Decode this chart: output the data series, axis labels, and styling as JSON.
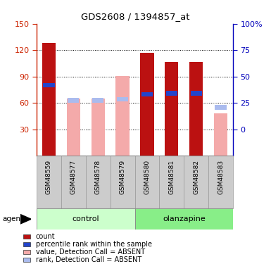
{
  "title": "GDS2608 / 1394857_at",
  "samples": [
    "GSM48559",
    "GSM48577",
    "GSM48578",
    "GSM48579",
    "GSM48580",
    "GSM48581",
    "GSM48582",
    "GSM48583"
  ],
  "red_bars": [
    128,
    0,
    0,
    0,
    117,
    107,
    107,
    0
  ],
  "pink_bars": [
    0,
    65,
    65,
    91,
    0,
    0,
    0,
    48
  ],
  "blue_markers": [
    80,
    0,
    0,
    0,
    70,
    71,
    71,
    0
  ],
  "lightblue_markers": [
    0,
    63,
    63,
    64,
    0,
    0,
    0,
    55
  ],
  "absent": [
    false,
    true,
    true,
    true,
    false,
    false,
    false,
    true
  ],
  "groups": [
    {
      "label": "control",
      "indices": [
        0,
        1,
        2,
        3
      ],
      "light_color": "#ccffcc",
      "dark_color": "#66cc66"
    },
    {
      "label": "olanzapine",
      "indices": [
        4,
        5,
        6,
        7
      ],
      "light_color": "#88ee88",
      "dark_color": "#33bb33"
    }
  ],
  "ylim_max": 150,
  "yticks_left": [
    30,
    60,
    90,
    120,
    150
  ],
  "right_tick_pos": [
    30,
    60,
    90,
    120,
    150
  ],
  "right_tick_labels": [
    "0",
    "25",
    "50",
    "75",
    "100%"
  ],
  "bar_width": 0.55,
  "red_color": "#bb1111",
  "pink_color": "#f4aaaa",
  "blue_color": "#2244cc",
  "lightblue_color": "#aabbee",
  "grid_color": "#000000",
  "left_tick_color": "#cc2200",
  "right_tick_color": "#0000bb",
  "bg_color": "#ffffff",
  "sample_box_color": "#cccccc",
  "agent_label": "agent",
  "legend_items": [
    {
      "label": "count",
      "color": "#bb1111"
    },
    {
      "label": "percentile rank within the sample",
      "color": "#2244cc"
    },
    {
      "label": "value, Detection Call = ABSENT",
      "color": "#f4aaaa"
    },
    {
      "label": "rank, Detection Call = ABSENT",
      "color": "#aabbee"
    }
  ]
}
